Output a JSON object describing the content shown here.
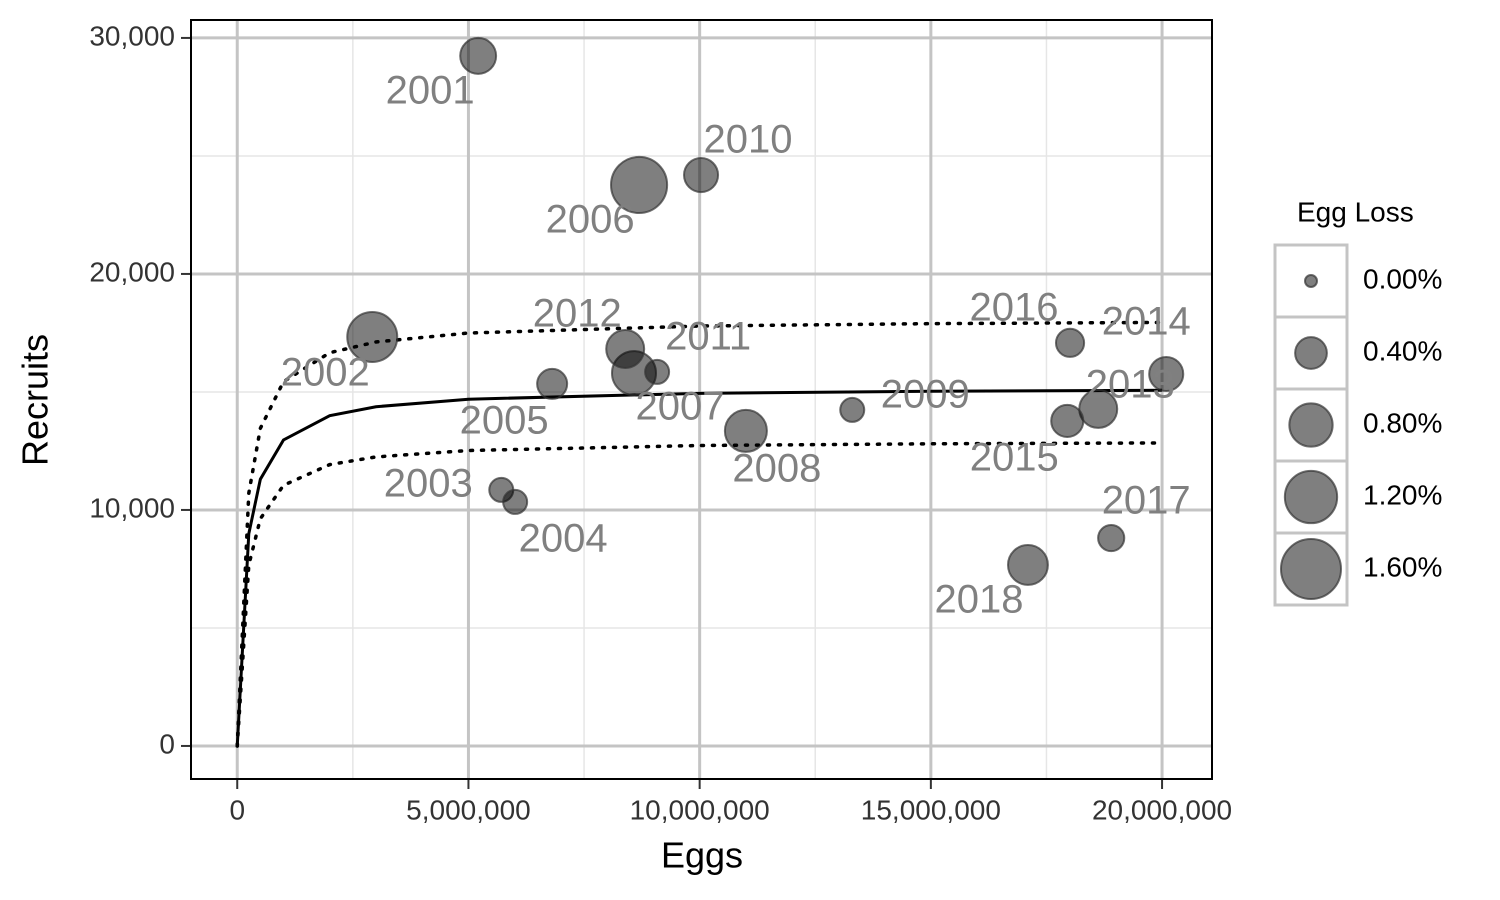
{
  "chart_data": {
    "type": "scatter",
    "x_label": "Eggs",
    "y_label": "Recruits",
    "xlim": [
      -1000000,
      21080000
    ],
    "ylim": [
      -1400,
      30760
    ],
    "xticks": [
      0,
      {
        "value": 5000000,
        "label": "5,000,000"
      },
      {
        "value": 10000000,
        "label": "10,000,000"
      },
      {
        "value": 15000000,
        "label": "15,000,000"
      },
      {
        "value": 20000000,
        "label": "20,000,000"
      }
    ],
    "yticks": [
      0,
      {
        "value": 10000,
        "label": "10,000"
      },
      {
        "value": 20000,
        "label": "20,000"
      },
      {
        "value": 30000,
        "label": "30,000"
      }
    ],
    "xminorticks": [
      2500000,
      7500000,
      12500000,
      17500000
    ],
    "yminorticks": [
      5000,
      15000,
      25000
    ],
    "grid": true,
    "points": {
      "color": "#000000",
      "opacity": 0.5,
      "labels": [
        "2001",
        "2002",
        "2003",
        "2004",
        "2005",
        "2006",
        "2007",
        "2008",
        "2009",
        "2010",
        "2011",
        "2012",
        "2013",
        "2014",
        "2015",
        "2016",
        "2017",
        "2018"
      ],
      "x": [
        5210000,
        2920000,
        5710000,
        6010000,
        6810000,
        8690000,
        8580000,
        11000000,
        13300000,
        10030000,
        9080000,
        8390000,
        18620000,
        20090000,
        17950000,
        18010000,
        18900000,
        17100000
      ],
      "y": [
        29240,
        17330,
        10850,
        10340,
        15340,
        23770,
        15800,
        13350,
        14240,
        24190,
        15850,
        16820,
        14280,
        15760,
        13770,
        17080,
        8810,
        7670
      ],
      "size": [
        0.53,
        1.09,
        0.2,
        0.2,
        0.35,
        1.39,
        0.83,
        0.75,
        0.2,
        0.47,
        0.2,
        0.6,
        0.6,
        0.47,
        0.41,
        0.3,
        0.25,
        0.67
      ]
    },
    "lines": [
      {
        "style": "solid",
        "color": "#000000",
        "x": [
          0,
          250000,
          500000,
          1000000,
          2000000,
          3000000,
          5000000,
          10000000,
          15000000,
          20000000
        ],
        "y": [
          0,
          8996,
          11302,
          12965,
          13993,
          14374,
          14693,
          14942,
          15027,
          15070
        ]
      },
      {
        "style": "dotted",
        "color": "#000000",
        "x": [
          0,
          250000,
          500000,
          1000000,
          2000000,
          3000000,
          5000000,
          10000000,
          15000000,
          20000000
        ],
        "y": [
          0,
          10712,
          13459,
          15437,
          16663,
          17117,
          17497,
          17794,
          17894,
          17946
        ]
      },
      {
        "style": "dotted",
        "color": "#000000",
        "x": [
          0,
          250000,
          500000,
          1000000,
          2000000,
          3000000,
          5000000,
          10000000,
          15000000,
          20000000
        ],
        "y": [
          0,
          7664,
          9630,
          11045,
          11922,
          12247,
          12519,
          12731,
          12803,
          12840
        ]
      }
    ],
    "size_legend": {
      "title": "Egg Loss",
      "entries": [
        {
          "value": 0,
          "label": "0.00%"
        },
        {
          "value": 0.4,
          "label": "0.40%"
        },
        {
          "value": 0.8,
          "label": "0.80%"
        },
        {
          "value": 1.2,
          "label": "1.20%"
        },
        {
          "value": 1.6,
          "label": "1.60%"
        }
      ]
    }
  }
}
